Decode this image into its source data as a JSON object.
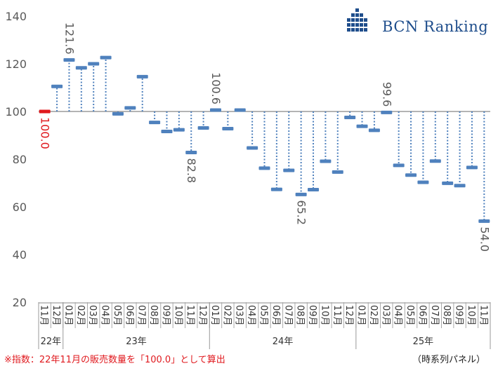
{
  "chart_data": {
    "type": "floating-bar",
    "baseline": 100,
    "ylim": [
      20,
      140
    ],
    "yticks": [
      20,
      40,
      60,
      80,
      100,
      120,
      140
    ],
    "grid": false,
    "months": [
      "11月",
      "12月",
      "01月",
      "02月",
      "03月",
      "04月",
      "05月",
      "06月",
      "07月",
      "08月",
      "09月",
      "10月",
      "11月",
      "12月",
      "01月",
      "02月",
      "03月",
      "04月",
      "05月",
      "06月",
      "07月",
      "08月",
      "09月",
      "10月",
      "11月",
      "12月",
      "01月",
      "02月",
      "03月",
      "04月",
      "05月",
      "06月",
      "07月",
      "08月",
      "09月",
      "10月",
      "11月"
    ],
    "year_groups": [
      {
        "label": "22年",
        "count": 2
      },
      {
        "label": "23年",
        "count": 12
      },
      {
        "label": "24年",
        "count": 12
      },
      {
        "label": "25年",
        "count": 11
      }
    ],
    "values": [
      100.0,
      110.5,
      121.6,
      118.3,
      120.0,
      122.6,
      99.0,
      101.5,
      114.6,
      95.4,
      91.6,
      92.3,
      82.8,
      93.1,
      100.6,
      92.8,
      100.6,
      84.7,
      76.2,
      67.3,
      75.3,
      65.2,
      67.2,
      79.1,
      74.6,
      97.5,
      93.8,
      92.1,
      99.6,
      77.4,
      73.3,
      70.3,
      79.2,
      69.9,
      68.9,
      76.5,
      54.0
    ],
    "data_labels": [
      {
        "index": 0,
        "text": "100.0",
        "position": "below"
      },
      {
        "index": 2,
        "text": "121.6",
        "position": "above"
      },
      {
        "index": 12,
        "text": "82.8",
        "position": "below"
      },
      {
        "index": 14,
        "text": "100.6",
        "position": "above"
      },
      {
        "index": 21,
        "text": "65.2",
        "position": "below"
      },
      {
        "index": 28,
        "text": "99.6",
        "position": "above"
      },
      {
        "index": 36,
        "text": "54.0",
        "position": "below"
      }
    ],
    "colors": {
      "marker": "#4f81bd",
      "first_marker": "#e0191e",
      "axis": "#888888",
      "text": "#595959"
    }
  },
  "logo": {
    "text": "BCN Ranking",
    "icon": "building-blocks-icon",
    "color": "#1f4e8c"
  },
  "footnote": "※指数：22年11月の販売数量を「100.0」として算出",
  "panel_label": "（時系列パネル）"
}
